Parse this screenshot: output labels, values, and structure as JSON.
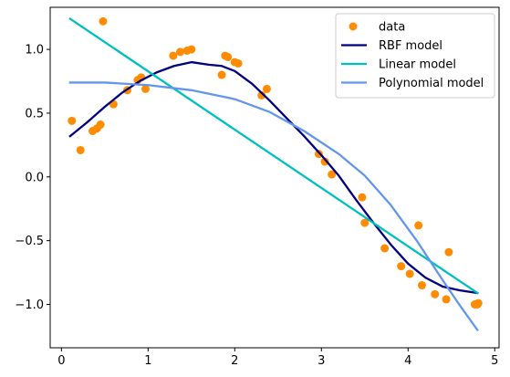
{
  "chart_data": {
    "type": "scatter",
    "title": "",
    "xlabel": "",
    "ylabel": "",
    "xlim": [
      -0.13,
      5.05
    ],
    "ylim": [
      -1.34,
      1.33
    ],
    "xticks": [
      0,
      1,
      2,
      3,
      4,
      5
    ],
    "yticks": [
      -1.0,
      -0.5,
      0.0,
      0.5,
      1.0
    ],
    "xtick_labels": [
      "0",
      "1",
      "2",
      "3",
      "4",
      "5"
    ],
    "ytick_labels": [
      "−1.0",
      "−0.5",
      "0.0",
      "0.5",
      "1.0"
    ],
    "grid": false,
    "legend_placement": "top-right",
    "series": [
      {
        "name": "data",
        "kind": "scatter",
        "color": "#ff8c00",
        "x": [
          0.12,
          0.22,
          0.36,
          0.41,
          0.45,
          0.48,
          0.6,
          0.76,
          0.88,
          0.92,
          0.97,
          1.29,
          1.37,
          1.45,
          1.5,
          1.85,
          1.89,
          1.92,
          2.0,
          2.04,
          2.31,
          2.37,
          2.97,
          3.04,
          3.12,
          3.47,
          3.5,
          3.73,
          3.92,
          4.02,
          4.12,
          4.16,
          4.31,
          4.44,
          4.47,
          4.77,
          4.8,
          4.81
        ],
        "y": [
          0.44,
          0.21,
          0.36,
          0.38,
          0.41,
          1.22,
          0.57,
          0.68,
          0.76,
          0.78,
          0.69,
          0.95,
          0.98,
          0.99,
          1.0,
          0.8,
          0.95,
          0.94,
          0.9,
          0.89,
          0.64,
          0.69,
          0.18,
          0.12,
          0.02,
          -0.16,
          -0.36,
          -0.56,
          -0.7,
          -0.76,
          -0.38,
          -0.85,
          -0.92,
          -0.96,
          -0.59,
          -1.0,
          -1.0,
          -0.99
        ]
      },
      {
        "name": "RBF model",
        "kind": "line",
        "color": "#000080",
        "x": [
          0.1,
          0.3,
          0.5,
          0.7,
          0.9,
          1.1,
          1.3,
          1.5,
          1.7,
          1.85,
          2.0,
          2.2,
          2.4,
          2.6,
          2.8,
          3.0,
          3.2,
          3.4,
          3.6,
          3.8,
          4.0,
          4.2,
          4.4,
          4.6,
          4.8
        ],
        "y": [
          0.32,
          0.43,
          0.55,
          0.66,
          0.75,
          0.82,
          0.87,
          0.9,
          0.88,
          0.87,
          0.83,
          0.73,
          0.6,
          0.46,
          0.32,
          0.17,
          0.01,
          -0.18,
          -0.36,
          -0.53,
          -0.68,
          -0.79,
          -0.86,
          -0.89,
          -0.91
        ]
      },
      {
        "name": "Linear model",
        "kind": "line",
        "color": "#00bfbf",
        "x": [
          0.1,
          4.8
        ],
        "y": [
          1.24,
          -0.91
        ]
      },
      {
        "name": "Polynomial model",
        "kind": "line",
        "color": "#6495ed",
        "x": [
          0.1,
          0.5,
          1.0,
          1.5,
          2.0,
          2.4,
          2.8,
          3.2,
          3.5,
          3.8,
          4.1,
          4.4,
          4.6,
          4.8
        ],
        "y": [
          0.74,
          0.74,
          0.72,
          0.68,
          0.61,
          0.51,
          0.36,
          0.18,
          0.01,
          -0.22,
          -0.5,
          -0.81,
          -1.01,
          -1.2
        ]
      }
    ]
  }
}
